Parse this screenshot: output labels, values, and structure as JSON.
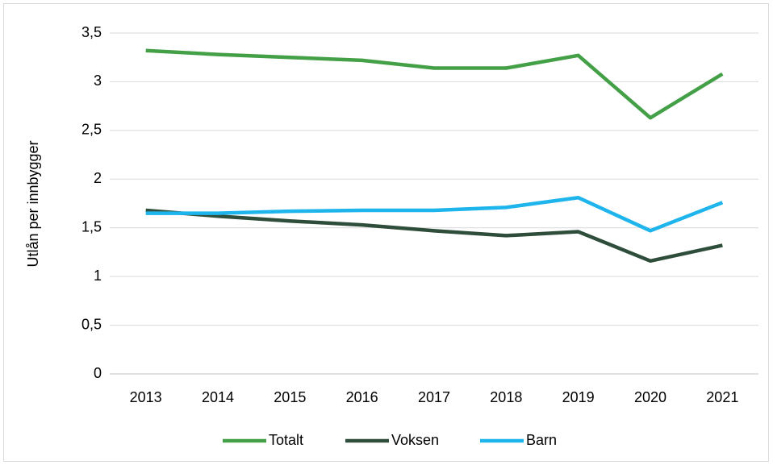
{
  "chart_data": {
    "type": "line",
    "y_label": "Utlån per innbygger",
    "categories": [
      "2013",
      "2014",
      "2015",
      "2016",
      "2017",
      "2018",
      "2019",
      "2020",
      "2021"
    ],
    "series": [
      {
        "name": "Totalt",
        "color": "#43a047",
        "values": [
          3.32,
          3.28,
          3.25,
          3.22,
          3.14,
          3.14,
          3.27,
          2.63,
          3.08
        ]
      },
      {
        "name": "Voksen",
        "color": "#2e4d3a",
        "values": [
          1.68,
          1.62,
          1.57,
          1.53,
          1.47,
          1.42,
          1.46,
          1.16,
          1.32
        ]
      },
      {
        "name": "Barn",
        "color": "#1eb4ec",
        "values": [
          1.65,
          1.65,
          1.67,
          1.68,
          1.68,
          1.71,
          1.81,
          1.47,
          1.76
        ]
      }
    ],
    "ylim": [
      0,
      3.5
    ],
    "yticks": [
      0,
      {
        "value": 0.5,
        "label": "0,5"
      },
      1,
      {
        "value": 1.5,
        "label": "1,5"
      },
      2,
      {
        "value": 2.5,
        "label": "2,5"
      },
      3,
      {
        "value": 3.5,
        "label": "3,5"
      }
    ],
    "grid": true,
    "legend": "bottom"
  }
}
